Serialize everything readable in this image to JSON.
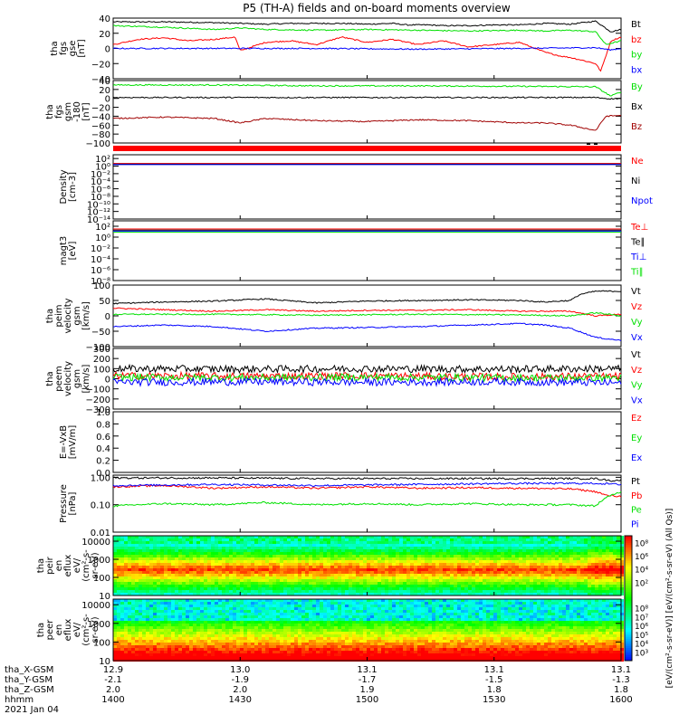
{
  "title": "P5 (TH-A) fields and on-board moments overview",
  "colors": {
    "black": "#000000",
    "red": "#ff0000",
    "green": "#00e000",
    "blue": "#0000ff",
    "darkred": "#a00000"
  },
  "chart_data": [
    {
      "type": "line",
      "ylabel": [
        "tha",
        "fgs",
        "gse",
        "[nT]"
      ],
      "ylim": [
        -40,
        40
      ],
      "yticks": [
        "40",
        "20",
        "0",
        "−20",
        "−40"
      ],
      "ytick_values": [
        40,
        20,
        0,
        -20,
        -40
      ],
      "series": [
        {
          "name": "Bt",
          "color": "#000000",
          "x": [
            0,
            10,
            20,
            25,
            30,
            35,
            40,
            45,
            50,
            55,
            58,
            60,
            62,
            65,
            68,
            70,
            75,
            80,
            85,
            90,
            95,
            98,
            100
          ],
          "values": [
            35,
            35,
            34,
            33,
            32,
            33,
            33,
            33,
            32,
            33,
            31,
            31,
            31,
            30,
            30,
            30,
            31,
            31,
            33,
            32,
            36,
            22,
            25
          ]
        },
        {
          "name": "bz",
          "color": "#ff0000",
          "x": [
            0,
            5,
            10,
            15,
            20,
            24,
            25,
            30,
            35,
            40,
            45,
            50,
            55,
            60,
            65,
            70,
            75,
            80,
            85,
            88,
            90,
            92,
            95,
            96,
            98,
            100
          ],
          "values": [
            5,
            12,
            14,
            10,
            12,
            15,
            -3,
            8,
            10,
            5,
            15,
            8,
            12,
            5,
            10,
            2,
            5,
            8,
            -5,
            -10,
            -12,
            -15,
            -20,
            -30,
            10,
            15
          ]
        },
        {
          "name": "by",
          "color": "#00e000",
          "x": [
            0,
            10,
            20,
            25,
            30,
            40,
            50,
            60,
            70,
            80,
            85,
            90,
            95,
            97,
            100
          ],
          "values": [
            30,
            28,
            25,
            27,
            25,
            24,
            25,
            24,
            23,
            24,
            23,
            24,
            22,
            5,
            10
          ]
        },
        {
          "name": "bx",
          "color": "#0000ff",
          "x": [
            0,
            20,
            40,
            60,
            80,
            95,
            98,
            100
          ],
          "values": [
            0,
            0,
            0,
            -1,
            0,
            1,
            -2,
            0
          ]
        }
      ]
    },
    {
      "type": "line",
      "ylabel": [
        "tha",
        "fgs",
        "gsm",
        "-180",
        "[nT]"
      ],
      "ylim": [
        -100,
        40
      ],
      "yticks": [
        "40",
        "20",
        "0",
        "−20",
        "−40",
        "−60",
        "−80",
        "−100"
      ],
      "ytick_values": [
        40,
        20,
        0,
        -20,
        -40,
        -60,
        -80,
        -100
      ],
      "series": [
        {
          "name": "By",
          "color": "#00e000",
          "x": [
            0,
            20,
            40,
            60,
            80,
            95,
            98,
            100
          ],
          "values": [
            30,
            30,
            28,
            28,
            27,
            26,
            5,
            15
          ]
        },
        {
          "name": "Bx",
          "color": "#000000",
          "x": [
            0,
            20,
            40,
            60,
            80,
            95,
            98,
            100
          ],
          "values": [
            2,
            2,
            2,
            2,
            2,
            2,
            -1,
            0
          ]
        },
        {
          "name": "Bz",
          "color": "#a00000",
          "x": [
            0,
            10,
            20,
            25,
            30,
            40,
            50,
            60,
            70,
            80,
            85,
            90,
            95,
            97,
            100
          ],
          "values": [
            -45,
            -42,
            -45,
            -55,
            -45,
            -50,
            -52,
            -48,
            -50,
            -55,
            -55,
            -60,
            -72,
            -40,
            -38
          ]
        }
      ]
    },
    {
      "type": "line",
      "ylabel": [
        "Density",
        "[cm-3]"
      ],
      "ylim_exp": [
        -14,
        3
      ],
      "yticks": [
        "10²",
        "10⁰",
        "10⁻²",
        "10⁻⁴",
        "10⁻⁶",
        "10⁻⁸",
        "10⁻¹⁰",
        "10⁻¹²",
        "10⁻¹⁴"
      ],
      "ytick_exps": [
        2,
        0,
        -2,
        -4,
        -6,
        -8,
        -10,
        -12,
        -14
      ],
      "series": [
        {
          "name": "Ne",
          "color": "#ff0000",
          "x": [
            0,
            100
          ],
          "values": [
            0.7,
            0.7
          ]
        },
        {
          "name": "Ni",
          "color": "#000000",
          "x": [
            0,
            100
          ],
          "values": [
            0.5,
            0.5
          ]
        },
        {
          "name": "Npot",
          "color": "#0000ff",
          "x": [
            0,
            100
          ],
          "values": [
            0.4,
            0.4
          ]
        }
      ]
    },
    {
      "type": "line",
      "ylabel": [
        "magt3",
        "[eV]"
      ],
      "ylim_exp": [
        -8,
        3
      ],
      "yticks": [
        "10²",
        "10⁰",
        "10⁻²",
        "10⁻⁴",
        "10⁻⁶",
        "10⁻⁸"
      ],
      "ytick_exps": [
        2,
        0,
        -2,
        -4,
        -6,
        -8
      ],
      "series": [
        {
          "name": "Te⊥",
          "color": "#ff0000",
          "x": [
            0,
            100
          ],
          "values": [
            1.5,
            1.5
          ]
        },
        {
          "name": "Te∥",
          "color": "#000000",
          "x": [
            0,
            100
          ],
          "values": [
            1.3,
            1.3
          ]
        },
        {
          "name": "Ti⊥",
          "color": "#0000ff",
          "x": [
            0,
            100
          ],
          "values": [
            1.1,
            1.1
          ]
        },
        {
          "name": "Ti∥",
          "color": "#00e000",
          "x": [
            0,
            100
          ],
          "values": [
            0.9,
            0.9
          ]
        }
      ]
    },
    {
      "type": "line",
      "ylabel": [
        "tha",
        "peim",
        "velocity",
        "gsm",
        "[km/s]"
      ],
      "ylim": [
        -100,
        100
      ],
      "yticks": [
        "100",
        "50",
        "0",
        "−50",
        "−100"
      ],
      "ytick_values": [
        100,
        50,
        0,
        -50,
        -100
      ],
      "series": [
        {
          "name": "Vt",
          "color": "#000000",
          "x": [
            0,
            10,
            20,
            30,
            40,
            50,
            60,
            70,
            80,
            85,
            90,
            92,
            95,
            100
          ],
          "values": [
            40,
            45,
            48,
            55,
            42,
            48,
            50,
            52,
            50,
            45,
            50,
            70,
            80,
            80
          ]
        },
        {
          "name": "Vz",
          "color": "#ff0000",
          "x": [
            0,
            10,
            20,
            30,
            40,
            50,
            60,
            70,
            80,
            90,
            95,
            100
          ],
          "values": [
            25,
            20,
            15,
            20,
            15,
            18,
            18,
            20,
            15,
            15,
            0,
            5
          ]
        },
        {
          "name": "Vy",
          "color": "#00e000",
          "x": [
            0,
            20,
            40,
            60,
            80,
            90,
            95,
            100
          ],
          "values": [
            5,
            5,
            2,
            5,
            3,
            0,
            10,
            0
          ]
        },
        {
          "name": "Vx",
          "color": "#0000ff",
          "x": [
            0,
            10,
            20,
            30,
            40,
            50,
            60,
            70,
            80,
            85,
            90,
            95,
            100
          ],
          "values": [
            -35,
            -30,
            -35,
            -50,
            -40,
            -38,
            -35,
            -30,
            -25,
            -30,
            -40,
            -70,
            -80
          ]
        }
      ]
    },
    {
      "type": "line",
      "ylabel": [
        "tha",
        "peem",
        "velocity",
        "gsm",
        "[km/s]"
      ],
      "ylim": [
        -300,
        300
      ],
      "yticks": [
        "300",
        "200",
        "100",
        "0",
        "−100",
        "−200",
        "−300"
      ],
      "ytick_values": [
        300,
        200,
        100,
        0,
        -100,
        -200,
        -300
      ],
      "series": [
        {
          "name": "Vt",
          "color": "#000000",
          "x": [
            0,
            25,
            50,
            75,
            100
          ],
          "values": [
            100,
            95,
            100,
            95,
            100
          ]
        },
        {
          "name": "Vz",
          "color": "#ff0000",
          "x": [
            0,
            25,
            50,
            75,
            100
          ],
          "values": [
            30,
            25,
            30,
            20,
            25
          ]
        },
        {
          "name": "Vy",
          "color": "#00e000",
          "x": [
            0,
            25,
            50,
            75,
            100
          ],
          "values": [
            15,
            10,
            15,
            10,
            10
          ]
        },
        {
          "name": "Vx",
          "color": "#0000ff",
          "x": [
            0,
            25,
            50,
            75,
            100
          ],
          "values": [
            -35,
            -30,
            -35,
            -30,
            -40
          ]
        }
      ]
    },
    {
      "type": "line",
      "ylabel": [
        "E=-VxB",
        "[mV/m]"
      ],
      "ylim": [
        0,
        1
      ],
      "yticks": [
        "1.0",
        "0.8",
        "0.6",
        "0.4",
        "0.2",
        "0.0"
      ],
      "ytick_values": [
        1.0,
        0.8,
        0.6,
        0.4,
        0.2,
        0.0
      ],
      "series": [
        {
          "name": "Ez",
          "color": "#ff0000",
          "x": [],
          "values": []
        },
        {
          "name": "Ey",
          "color": "#00e000",
          "x": [],
          "values": []
        },
        {
          "name": "Ex",
          "color": "#0000ff",
          "x": [],
          "values": []
        }
      ]
    },
    {
      "type": "line",
      "ylabel": [
        "Pressure",
        "[nPa]"
      ],
      "ylim_log": [
        0.01,
        1.2
      ],
      "yticks": [
        "1.00",
        "0.10",
        "0.01"
      ],
      "ytick_values": [
        1.0,
        0.1,
        0.01
      ],
      "series": [
        {
          "name": "Pt",
          "color": "#000000",
          "x": [
            0,
            20,
            40,
            60,
            80,
            95,
            98,
            100
          ],
          "values": [
            0.95,
            0.95,
            0.9,
            0.9,
            0.9,
            0.9,
            0.75,
            0.8
          ]
        },
        {
          "name": "Pb",
          "color": "#ff0000",
          "x": [
            0,
            10,
            20,
            30,
            40,
            50,
            60,
            70,
            80,
            90,
            95,
            97,
            100
          ],
          "values": [
            0.45,
            0.5,
            0.4,
            0.45,
            0.4,
            0.45,
            0.4,
            0.42,
            0.4,
            0.38,
            0.3,
            0.22,
            0.2
          ]
        },
        {
          "name": "Pe",
          "color": "#00e000",
          "x": [
            0,
            10,
            20,
            30,
            40,
            50,
            60,
            70,
            80,
            90,
            95,
            100
          ],
          "values": [
            0.09,
            0.11,
            0.1,
            0.12,
            0.1,
            0.11,
            0.1,
            0.11,
            0.1,
            0.1,
            0.09,
            0.3
          ]
        },
        {
          "name": "Pi",
          "color": "#0000ff",
          "x": [
            0,
            20,
            40,
            60,
            80,
            90,
            95,
            100
          ],
          "values": [
            0.5,
            0.55,
            0.5,
            0.55,
            0.6,
            0.6,
            0.6,
            0.55
          ]
        }
      ]
    },
    {
      "type": "heatmap",
      "ylabel": [
        "tha",
        "peir",
        "en",
        "eflux",
        "eV/",
        "(cm²-s-",
        "sr-eV)"
      ],
      "ylim_log": [
        10,
        20000
      ],
      "yticks": [
        "10000",
        "1000",
        "100",
        "10"
      ],
      "ytick_values": [
        10000,
        1000,
        100,
        10
      ]
    },
    {
      "type": "heatmap",
      "ylabel": [
        "tha",
        "peer",
        "en",
        "eflux",
        "eV/",
        "(cm²-s-",
        "sr-eV)"
      ],
      "ylim_log": [
        10,
        20000
      ],
      "yticks": [
        "10000",
        "1000",
        "100",
        "10"
      ],
      "ytick_values": [
        10000,
        1000,
        100,
        10
      ]
    }
  ],
  "colorbar": {
    "ticks": [
      "10⁸",
      "10⁶",
      "10⁴",
      "10²"
    ],
    "tick_exps": [
      8,
      6,
      4,
      2
    ],
    "ticks2": [
      "10⁸",
      "10⁷",
      "10⁶",
      "10⁵",
      "10⁴",
      "10³"
    ],
    "tick_exps2": [
      8,
      7,
      6,
      5,
      4,
      3
    ],
    "label": "[eV/(cm²-s-sr-eV)] [eV/(cm²-s-sr-eV) (All Qs)]"
  },
  "xaxis": {
    "rows": [
      {
        "label": "tha_X-GSM",
        "values": [
          "12.9",
          "13.0",
          "13.1",
          "13.1",
          "13.1"
        ]
      },
      {
        "label": "tha_Y-GSM",
        "values": [
          "-2.1",
          "-1.9",
          "-1.7",
          "-1.5",
          "-1.3"
        ]
      },
      {
        "label": "tha_Z-GSM",
        "values": [
          "2.0",
          "2.0",
          "1.9",
          "1.8",
          "1.8"
        ]
      },
      {
        "label": "hhmm",
        "values": [
          "1400",
          "1430",
          "1500",
          "1530",
          "1600"
        ]
      }
    ],
    "date": "2021 Jan 04"
  }
}
